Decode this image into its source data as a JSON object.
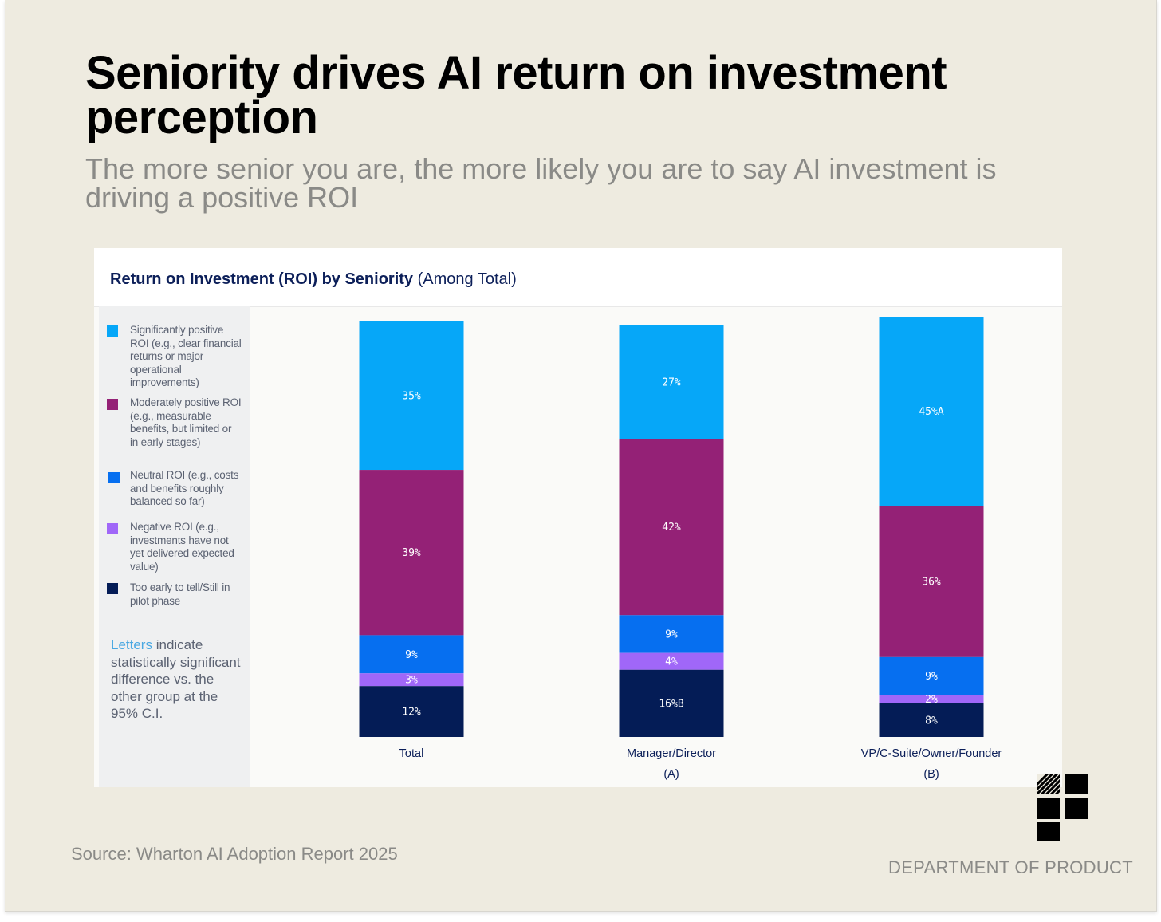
{
  "headline": "Seniority drives AI return on investment perception",
  "subhead": "The more senior you are, the more likely you are to say AI investment is driving a positive ROI",
  "chart_title_bold": "Return on Investment (ROI) by Seniority",
  "chart_title_rest": " (Among Total)",
  "legend_note": {
    "accent": "Letters",
    "rest": " indicate statistically significant difference vs. the other group at the 95% C.I.",
    "accent_color": "#4aa8e2"
  },
  "source": "Source: Wharton AI Adoption Report 2025",
  "brand": {
    "name": "DEPARTMENT OF PRODUCT",
    "logo_icon": "department-of-product-logo"
  },
  "chart_data": {
    "type": "bar",
    "stacked": true,
    "orientation": "vertical",
    "categories": [
      "Total",
      "Manager/Director",
      "VP/C-Suite/Owner/Founder"
    ],
    "category_sublabels": [
      "",
      "(A)",
      "(B)"
    ],
    "unit": "%",
    "series_order": "top-to-bottom",
    "series": [
      {
        "name": "Significantly positive ROI (e.g., clear financial returns or major operational improvements)",
        "color": "#06a7f8",
        "values": [
          35,
          27,
          45
        ],
        "labels": [
          "35%",
          "27%",
          "45%A"
        ]
      },
      {
        "name": "Moderately positive ROI (e.g., measurable benefits, but limited or in early stages)",
        "color": "#942176",
        "values": [
          39,
          42,
          36
        ],
        "labels": [
          "39%",
          "42%",
          "36%"
        ]
      },
      {
        "name": "Neutral ROI (e.g., costs and benefits roughly balanced so far)",
        "color": "#066ff0",
        "values": [
          9,
          9,
          9
        ],
        "labels": [
          "9%",
          "9%",
          "9%"
        ]
      },
      {
        "name": "Negative ROI (e.g., investments have not yet delivered expected value)",
        "color": "#a067f8",
        "values": [
          3,
          4,
          2
        ],
        "labels": [
          "3%",
          "4%",
          "2%"
        ]
      },
      {
        "name": "Too early to tell/Still in pilot phase",
        "color": "#041c56",
        "values": [
          12,
          16,
          8
        ],
        "labels": [
          "12%",
          "16%B",
          "8%"
        ]
      }
    ],
    "legend_position": "left",
    "grid": false,
    "ylim": [
      0,
      100
    ]
  }
}
